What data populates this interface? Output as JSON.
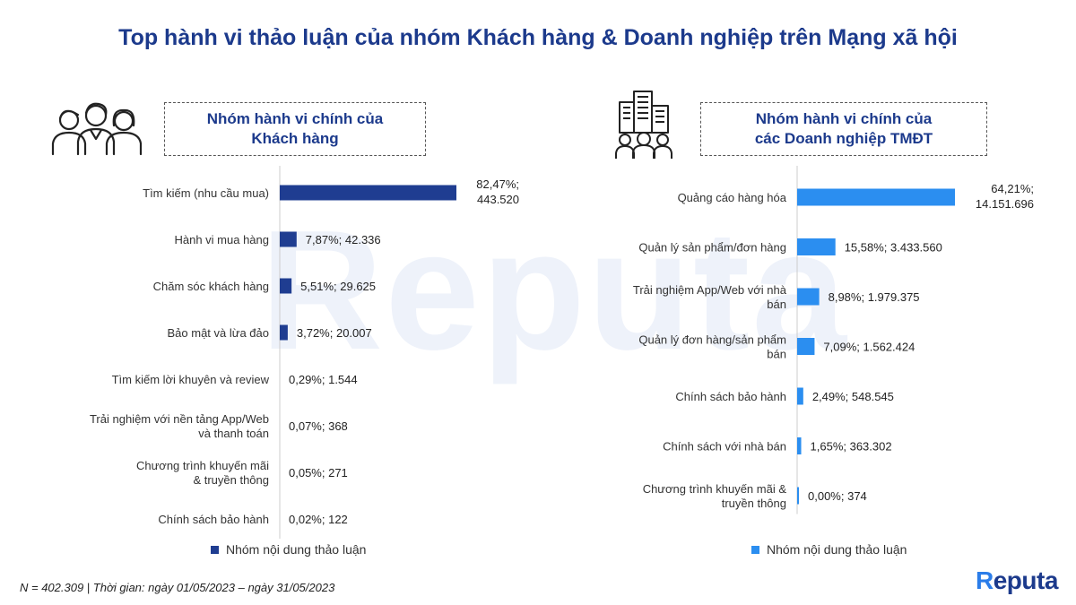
{
  "title": "Top hành vi thảo luận của nhóm Khách hàng & Doanh nghiệp trên Mạng xã hội",
  "watermark": "Reputa",
  "footnote": "N = 402.309 | Thời gian: ngày 01/05/2023 – ngày 31/05/2023",
  "logo": {
    "first": "R",
    "rest": "eputa"
  },
  "colors": {
    "left_bar": "#1f3d91",
    "right_bar": "#2b8ef0",
    "title": "#1c3a8c"
  },
  "icons": {
    "left": "people-group-icon",
    "right": "office-building-people-icon"
  },
  "chart_data": [
    {
      "type": "bar",
      "orientation": "horizontal",
      "header_line1": "Nhóm hành vi chính của",
      "header_line2": "Khách hàng",
      "legend": "Nhóm nội dung thảo luận",
      "categories": [
        [
          "Tìm kiếm (nhu cầu mua)"
        ],
        [
          "Hành vi mua hàng"
        ],
        [
          "Chăm sóc khách hàng"
        ],
        [
          "Bảo mật và lừa đảo"
        ],
        [
          "Tìm kiếm lời khuyên và review"
        ],
        [
          "Trải nghiệm với nền tảng App/Web",
          "và thanh toán"
        ],
        [
          "Chương trình khuyến mãi",
          "& truyền thông"
        ],
        [
          "Chính sách bảo hành"
        ]
      ],
      "percent": [
        82.47,
        7.87,
        5.51,
        3.72,
        0.29,
        0.07,
        0.05,
        0.02
      ],
      "labels": [
        [
          "82,47%;",
          "443.520"
        ],
        [
          "7,87%;  42.336"
        ],
        [
          "5,51%;  29.625"
        ],
        [
          "3,72%;  20.007"
        ],
        [
          "0,29%;  1.544"
        ],
        [
          "0,07%;  368"
        ],
        [
          "0,05%;  271"
        ],
        [
          "0,02%;  122"
        ]
      ],
      "counts": [
        443520,
        42336,
        29625,
        20007,
        1544,
        368,
        271,
        122
      ]
    },
    {
      "type": "bar",
      "orientation": "horizontal",
      "header_line1": "Nhóm hành vi chính của",
      "header_line2": "các Doanh nghiệp TMĐT",
      "legend": "Nhóm nội dung thảo luận",
      "categories": [
        [
          "Quảng cáo hàng hóa"
        ],
        [
          "Quản lý sản phẩm/đơn hàng"
        ],
        [
          "Trải nghiệm App/Web với nhà",
          "bán"
        ],
        [
          "Quản lý đơn hàng/sản phẩm",
          "bán"
        ],
        [
          "Chính sách bảo hành"
        ],
        [
          "Chính sách với nhà bán"
        ],
        [
          "Chương trình khuyến mãi &",
          "truyền thông"
        ]
      ],
      "percent": [
        64.21,
        15.58,
        8.98,
        7.09,
        2.49,
        1.65,
        0.0
      ],
      "labels": [
        [
          "64,21%;",
          "14.151.696"
        ],
        [
          "15,58%;  3.433.560"
        ],
        [
          "8,98%;  1.979.375"
        ],
        [
          "7,09%;  1.562.424"
        ],
        [
          "2,49%;  548.545"
        ],
        [
          "1,65%;  363.302"
        ],
        [
          "0,00%;  374"
        ]
      ],
      "counts": [
        14151696,
        3433560,
        1979375,
        1562424,
        548545,
        363302,
        374
      ]
    }
  ]
}
